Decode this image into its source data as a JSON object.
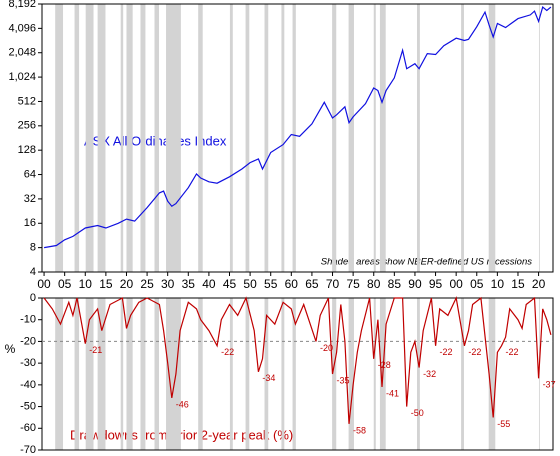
{
  "chart_data": [
    {
      "type": "line",
      "log_scale": true,
      "log_base": 2,
      "note": "Shaded areas show NBER-defined US recessions",
      "shaded_regions": [
        [
          1902.7,
          1904.6
        ],
        [
          1907.4,
          1908.5
        ],
        [
          1910.1,
          1912.0
        ],
        [
          1913.0,
          1914.9
        ],
        [
          1918.6,
          1919.2
        ],
        [
          1920.0,
          1921.5
        ],
        [
          1923.4,
          1924.6
        ],
        [
          1926.8,
          1927.9
        ],
        [
          1929.6,
          1933.2
        ],
        [
          1937.4,
          1938.5
        ],
        [
          1945.1,
          1945.8
        ],
        [
          1948.9,
          1949.8
        ],
        [
          1953.5,
          1954.4
        ],
        [
          1957.6,
          1958.3
        ],
        [
          1960.3,
          1961.1
        ],
        [
          1969.9,
          1970.9
        ],
        [
          1973.9,
          1975.2
        ],
        [
          1980.0,
          1980.5
        ],
        [
          1981.5,
          1982.9
        ],
        [
          1990.5,
          1991.2
        ],
        [
          2001.2,
          2001.9
        ],
        [
          2007.9,
          2009.5
        ],
        [
          2020.1,
          2020.3
        ]
      ],
      "shade_color": "#d3d3d3",
      "xlim": [
        1899.5,
        2023.5
      ],
      "xticks": [
        {
          "value": 1900,
          "label": "00"
        },
        {
          "value": 1905,
          "label": "05"
        },
        {
          "value": 1910,
          "label": "10"
        },
        {
          "value": 1915,
          "label": "15"
        },
        {
          "value": 1920,
          "label": "20"
        },
        {
          "value": 1925,
          "label": "25"
        },
        {
          "value": 1930,
          "label": "30"
        },
        {
          "value": 1935,
          "label": "35"
        },
        {
          "value": 1940,
          "label": "40"
        },
        {
          "value": 1945,
          "label": "45"
        },
        {
          "value": 1950,
          "label": "50"
        },
        {
          "value": 1955,
          "label": "55"
        },
        {
          "value": 1960,
          "label": "60"
        },
        {
          "value": 1965,
          "label": "65"
        },
        {
          "value": 1970,
          "label": "70"
        },
        {
          "value": 1975,
          "label": "75"
        },
        {
          "value": 1980,
          "label": "80"
        },
        {
          "value": 1985,
          "label": "85"
        },
        {
          "value": 1990,
          "label": "90"
        },
        {
          "value": 1995,
          "label": "95"
        },
        {
          "value": 2000,
          "label": "00"
        },
        {
          "value": 2005,
          "label": "05"
        },
        {
          "value": 2010,
          "label": "10"
        },
        {
          "value": 2015,
          "label": "15"
        },
        {
          "value": 2020,
          "label": "20"
        }
      ],
      "ylim": [
        4,
        8192
      ],
      "yticks": [
        4,
        8,
        16,
        32,
        64,
        128,
        256,
        512,
        {
          "value": 1024,
          "label": "1,024"
        },
        {
          "value": 2048,
          "label": "2,048"
        },
        {
          "value": 4096,
          "label": "4,096"
        },
        {
          "value": 8192,
          "label": "8,192"
        }
      ],
      "x": [
        1900,
        1903,
        1905,
        1907,
        1910,
        1913,
        1915,
        1918,
        1920,
        1922,
        1925,
        1928,
        1929,
        1930,
        1931,
        1932,
        1935,
        1937,
        1938,
        1940,
        1942,
        1945,
        1948,
        1950,
        1952,
        1953,
        1955,
        1958,
        1960,
        1962,
        1965,
        1968,
        1970,
        1971,
        1973,
        1974,
        1975,
        1978,
        1980,
        1981,
        1982,
        1983,
        1985,
        1987,
        1988,
        1990,
        1991,
        1993,
        1995,
        1997,
        2000,
        2002,
        2003,
        2005,
        2007,
        2008,
        2009,
        2010,
        2012,
        2015,
        2018,
        2019,
        2020,
        2021,
        2022,
        2023
      ],
      "series": [
        {
          "name": "ASX All Ordinaries Index",
          "color": "#1010e0",
          "values": [
            8,
            8.5,
            10,
            11,
            14,
            15,
            14,
            16,
            18,
            17,
            25,
            38,
            40,
            30,
            26,
            28,
            44,
            65,
            58,
            52,
            50,
            60,
            75,
            90,
            100,
            75,
            120,
            150,
            200,
            190,
            270,
            500,
            320,
            350,
            440,
            280,
            330,
            480,
            750,
            700,
            500,
            700,
            1000,
            2200,
            1300,
            1500,
            1300,
            2000,
            1950,
            2500,
            3100,
            2900,
            3000,
            4300,
            6500,
            4500,
            3200,
            4700,
            4200,
            5400,
            6000,
            6700,
            5000,
            7500,
            6800,
            7500
          ]
        }
      ]
    },
    {
      "type": "line",
      "ylabel": "%",
      "reference_line": -20,
      "xlim": [
        1899.5,
        2023.5
      ],
      "ylim": [
        -70,
        0
      ],
      "yticks": [
        -70,
        -60,
        -50,
        -40,
        -30,
        -20,
        -10,
        0
      ],
      "x": [
        1900,
        1902,
        1904,
        1906,
        1907,
        1908,
        1910,
        1911,
        1913,
        1914,
        1916,
        1919,
        1920,
        1921,
        1923,
        1925,
        1928,
        1929,
        1930,
        1931,
        1932,
        1933,
        1935,
        1937,
        1938,
        1940,
        1942,
        1943,
        1945,
        1947,
        1949,
        1951,
        1952,
        1953,
        1954,
        1956,
        1958,
        1960,
        1961,
        1963,
        1966,
        1967,
        1969,
        1970,
        1971,
        1972,
        1973,
        1974,
        1975,
        1976,
        1977,
        1979,
        1980,
        1981,
        1982,
        1983,
        1985,
        1987,
        1988,
        1989,
        1990,
        1991,
        1992,
        1994,
        1995,
        1996,
        1998,
        2000,
        2002,
        2003,
        2004,
        2006,
        2008,
        2009,
        2010,
        2011,
        2012,
        2013,
        2015,
        2016,
        2017,
        2019,
        2020,
        2021,
        2022,
        2023
      ],
      "series": [
        {
          "name": "Drawdowns from prior 2-year peak (%)",
          "color": "#c00000",
          "values": [
            0,
            -5,
            -12,
            -2,
            -8,
            0,
            -21,
            -10,
            -5,
            -15,
            -3,
            0,
            -14,
            -8,
            -2,
            0,
            -3,
            -15,
            -30,
            -46,
            -35,
            -15,
            -2,
            -5,
            -10,
            -15,
            -22,
            -10,
            -3,
            -8,
            0,
            -15,
            -34,
            -28,
            -8,
            -12,
            -2,
            -5,
            -12,
            -3,
            -20,
            -8,
            0,
            -35,
            -25,
            -3,
            -20,
            -58,
            -40,
            -25,
            -15,
            0,
            -28,
            -10,
            -41,
            -12,
            0,
            0,
            -50,
            -25,
            -20,
            -32,
            -15,
            0,
            -22,
            -5,
            -8,
            0,
            -22,
            -15,
            -3,
            0,
            -35,
            -55,
            -25,
            -22,
            -18,
            -5,
            -10,
            -14,
            -3,
            0,
            -37,
            -5,
            -10,
            -17
          ]
        }
      ],
      "troughs": [
        {
          "x": 1910,
          "value": -21
        },
        {
          "x": 1931,
          "value": -46
        },
        {
          "x": 1942,
          "value": -22
        },
        {
          "x": 1952,
          "value": -34
        },
        {
          "x": 1966,
          "value": -20
        },
        {
          "x": 1970,
          "value": -35
        },
        {
          "x": 1974,
          "value": -58
        },
        {
          "x": 1980,
          "value": -28
        },
        {
          "x": 1982,
          "value": -41
        },
        {
          "x": 1988,
          "value": -50
        },
        {
          "x": 1991,
          "value": -32
        },
        {
          "x": 1995,
          "value": -22
        },
        {
          "x": 2002,
          "value": -22
        },
        {
          "x": 2009,
          "value": -55
        },
        {
          "x": 2011,
          "value": -22
        },
        {
          "x": 2020,
          "value": -37
        }
      ]
    }
  ]
}
